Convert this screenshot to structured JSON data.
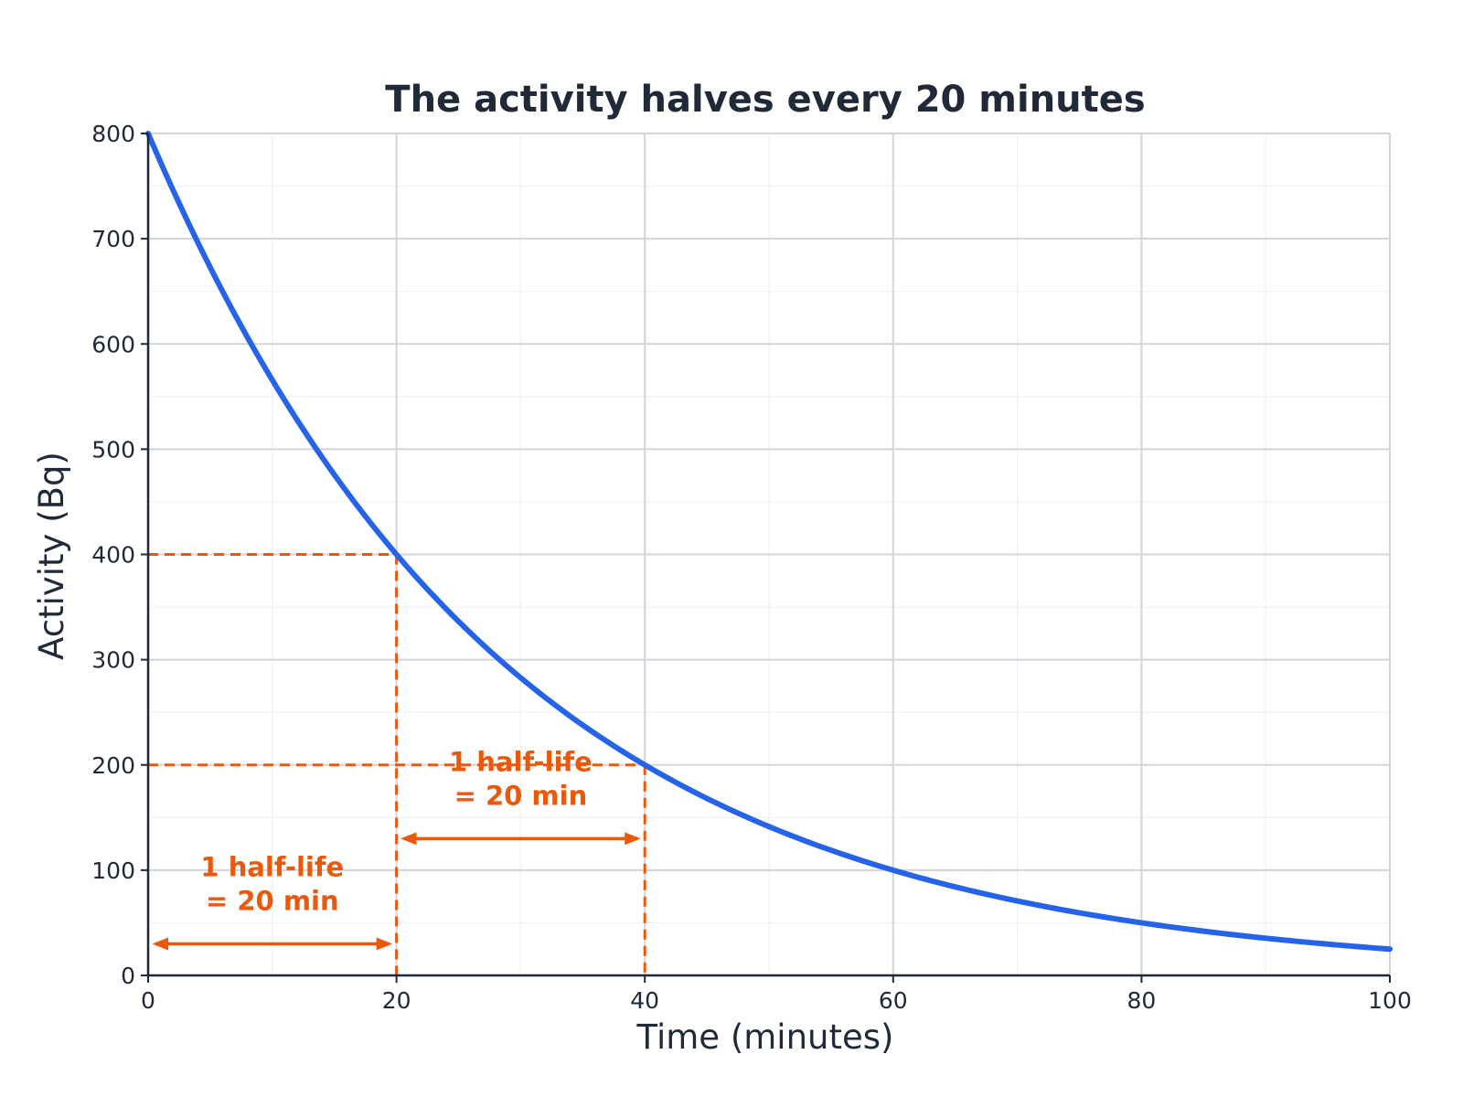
{
  "chart_data": {
    "type": "line",
    "title": "The activity halves every 20 minutes",
    "xlabel": "Time (minutes)",
    "ylabel": "Activity (Bq)",
    "xlim": [
      0,
      100
    ],
    "ylim": [
      0,
      800
    ],
    "x_ticks": [
      "0",
      "20",
      "40",
      "60",
      "80",
      "100"
    ],
    "y_ticks": [
      "0",
      "100",
      "200",
      "300",
      "400",
      "500",
      "600",
      "700",
      "800"
    ],
    "grid": true,
    "series": [
      {
        "x": [
          0,
          5,
          10,
          15,
          20,
          25,
          30,
          35,
          40,
          45,
          50,
          55,
          60,
          65,
          70,
          75,
          80,
          85,
          90,
          95,
          100
        ],
        "y": [
          800,
          672.7,
          565.7,
          475.7,
          400,
          336.4,
          282.8,
          237.8,
          200,
          168.2,
          141.4,
          118.9,
          100,
          84.1,
          70.7,
          59.5,
          50,
          42,
          35.4,
          29.7,
          25
        ],
        "color": "#2563eb"
      }
    ],
    "initial_activity": 800,
    "half_life_minutes": 20,
    "reference_points": [
      {
        "x": 20,
        "y": 400
      },
      {
        "x": 40,
        "y": 200
      }
    ],
    "annotations": [
      {
        "lines": [
          "1 half-life",
          "= 20 min"
        ],
        "x_start": 0,
        "x_end": 20,
        "arrow_y": 30
      },
      {
        "lines": [
          "1 half-life",
          "= 20 min"
        ],
        "x_start": 20,
        "x_end": 40,
        "arrow_y": 130
      }
    ],
    "colors": {
      "curve": "#2563eb",
      "annotation": "#ea580c",
      "text": "#1f2937",
      "grid_major": "#d1d5db",
      "grid_minor": "#eef0f3"
    }
  }
}
